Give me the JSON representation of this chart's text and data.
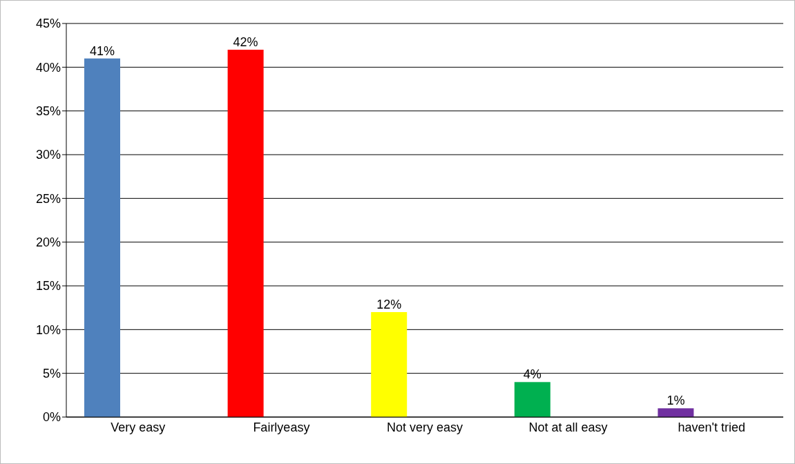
{
  "chart_data": {
    "type": "bar",
    "categories": [
      "Very easy",
      "Fairlyeasy",
      "Not very easy",
      "Not at all easy",
      "haven't tried"
    ],
    "values": [
      41,
      42,
      12,
      4,
      1
    ],
    "colors": [
      "#4f81bd",
      "#ff0000",
      "#ffff00",
      "#00b050",
      "#7030a0"
    ],
    "value_labels": [
      "41%",
      "42%",
      "12%",
      "4%",
      "1%"
    ],
    "ylim": [
      0,
      45
    ],
    "yticks": [
      {
        "value": 0,
        "label": "0%"
      },
      {
        "value": 5,
        "label": "5%"
      },
      {
        "value": 10,
        "label": "10%"
      },
      {
        "value": 15,
        "label": "15%"
      },
      {
        "value": 20,
        "label": "20%"
      },
      {
        "value": 25,
        "label": "25%"
      },
      {
        "value": 30,
        "label": "30%"
      },
      {
        "value": 35,
        "label": "35%"
      },
      {
        "value": 40,
        "label": "40%"
      },
      {
        "value": 45,
        "label": "45%"
      }
    ],
    "grid": "y"
  }
}
